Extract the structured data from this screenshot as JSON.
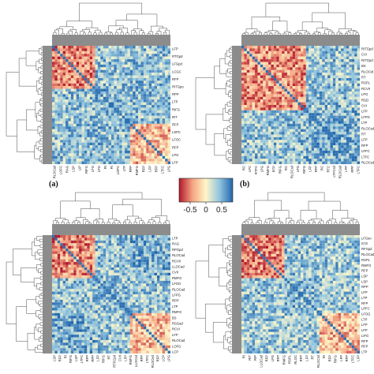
{
  "figure": {
    "panel_labels": [
      "(a)",
      "(b)",
      "",
      ""
    ]
  },
  "colors": {
    "low": "#b2182b",
    "mid_low": "#f4a582",
    "mid": "#fff7c8",
    "mid_high": "#92c5de",
    "high": "#2166ac",
    "tree": "#4d4d4d",
    "gutter": "#8c8c8c"
  },
  "chart_data": [
    {
      "type": "heatmap",
      "panel": "(a)",
      "clusters": 3,
      "row_labels": [
        "LFP",
        "RTGpd",
        "LFGpd",
        "LCGC",
        "RFP",
        "RITGpo",
        "RPP",
        "LTP",
        "RIFG",
        "IRT",
        "RFP",
        "LSPC",
        "LFOC",
        "RFP",
        "LPG",
        "LFP"
      ],
      "col_labels": [
        "RLOCad",
        "LOFC",
        "RAG",
        "LSP",
        "LIP",
        "RIFG",
        "LFG",
        "LPG",
        "RI",
        "RI",
        "LOPC",
        "LTP",
        "RFP",
        "RMFG",
        "RFP",
        "LFP",
        "RFP",
        "LTFC",
        "LPG"
      ]
    },
    {
      "type": "heatmap",
      "panel": "(b)",
      "clusters": 2,
      "row_labels": [
        "RITGpd",
        "CVI",
        "RITGpd",
        "BS",
        "RLOCid",
        "RT",
        "RSPL",
        "RCVII",
        "LPG",
        "RGD",
        "CVI",
        "LFP",
        "LFPG",
        "LTP",
        "RLOCsd",
        "RT",
        "LFP",
        "RFP",
        "LPFC",
        "LTFC",
        "RLOCed"
      ],
      "col_labels": [
        "RC",
        "LPC",
        "RTFC",
        "LPG",
        "RMFG",
        "RTP",
        "RIFG",
        "RC",
        "RLOCsd",
        "LPG",
        "RIFG",
        "LFP",
        "RFP",
        "RC",
        "RTC",
        "LTFCsd",
        "RLOCad",
        "LFP",
        "RPP",
        "LTFC"
      ]
    },
    {
      "type": "heatmap",
      "panel": "",
      "clusters": 3,
      "row_labels": [
        "LTP",
        "RAG",
        "RPGpd",
        "RLOCad",
        "RCVII",
        "LLOCad",
        "CVII",
        "RMFG",
        "LFOG",
        "RLOCad",
        "LFPG",
        "RPP",
        "LTP",
        "RMFG",
        "BS",
        "RSGad",
        "RCVI",
        "LFP",
        "RLOCad",
        "LOFG",
        "LCP"
      ],
      "col_labels": [
        "LSP",
        "RFP",
        "RI",
        "RIFG",
        "LSP",
        "LTFC",
        "RFP",
        "RPP",
        "LFP",
        "RIFG",
        "RT",
        "RTFCpd",
        "CVII",
        "LFP",
        "RMFG",
        "LLOCsd",
        "RFP",
        "LTFC",
        "RLOCed",
        "RFP",
        "LCP",
        "LPG"
      ]
    },
    {
      "type": "heatmap",
      "panel": "",
      "clusters": 3,
      "row_labels": [
        "LFGso",
        "RTP",
        "RFGpd",
        "RLOCad",
        "RSPL",
        "RMFG",
        "RFP",
        "LSP",
        "LSP",
        "RPP",
        "LFP",
        "LTP",
        "RFP",
        "LPFC",
        "LFOG",
        "LTP",
        "LFP",
        "LFP",
        "LIFG",
        "RFP",
        "RFP",
        "LTP"
      ],
      "col_labels": [
        "RI",
        "RIT",
        "RIP",
        "LLOCad",
        "RFP",
        "LPG",
        "RFP",
        "RMFG",
        "RSPL",
        "RLOC",
        "RFP",
        "LFP",
        "RT",
        "RLOCsd",
        "RI",
        "RFP",
        "RIFG",
        "LFP",
        "RFP",
        "LTFC",
        "LFP"
      ]
    }
  ],
  "colorbar": {
    "ticks": [
      "-0.5",
      "0",
      "0.5"
    ],
    "tick_values": [
      -0.5,
      0,
      0.5
    ],
    "range": [
      -0.85,
      0.85
    ]
  }
}
